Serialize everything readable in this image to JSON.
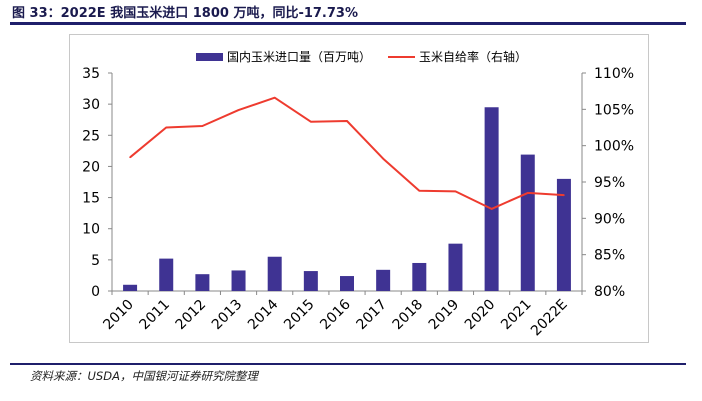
{
  "figure": {
    "title": "图 33：2022E 我国玉米进口 1800 万吨，同比-17.73%",
    "source": "资料来源：USDA，中国银河证券研究院整理"
  },
  "colors": {
    "bar": "#3f3393",
    "line": "#ee3b2f",
    "axis": "#888888",
    "rule": "#1f1f6b"
  },
  "chart_data": {
    "type": "bar+line",
    "categories": [
      "2010",
      "2011",
      "2012",
      "2013",
      "2014",
      "2015",
      "2016",
      "2017",
      "2018",
      "2019",
      "2020",
      "2021",
      "2022E"
    ],
    "series": [
      {
        "name": "国内玉米进口量（百万吨）",
        "type": "bar",
        "axis": "left",
        "values": [
          1.0,
          5.2,
          2.7,
          3.3,
          5.5,
          3.2,
          2.4,
          3.4,
          4.5,
          7.6,
          29.5,
          21.9,
          18.0
        ]
      },
      {
        "name": "玉米自给率（右轴）",
        "type": "line",
        "axis": "right",
        "values": [
          98.4,
          102.5,
          102.7,
          104.9,
          106.6,
          103.3,
          103.4,
          98.2,
          93.8,
          93.7,
          91.3,
          93.5,
          93.2
        ]
      }
    ],
    "left_axis": {
      "ylim": [
        0,
        35
      ],
      "ticks": [
        0,
        5,
        10,
        15,
        20,
        25,
        30,
        35
      ],
      "tick_labels": [
        "0",
        "5",
        "10",
        "15",
        "20",
        "25",
        "30",
        "35"
      ]
    },
    "right_axis": {
      "ylim": [
        80,
        110
      ],
      "ticks": [
        80,
        85,
        90,
        95,
        100,
        105,
        110
      ],
      "tick_labels": [
        "80%",
        "85%",
        "90%",
        "95%",
        "100%",
        "105%",
        "110%"
      ]
    },
    "legend_position": "top"
  }
}
